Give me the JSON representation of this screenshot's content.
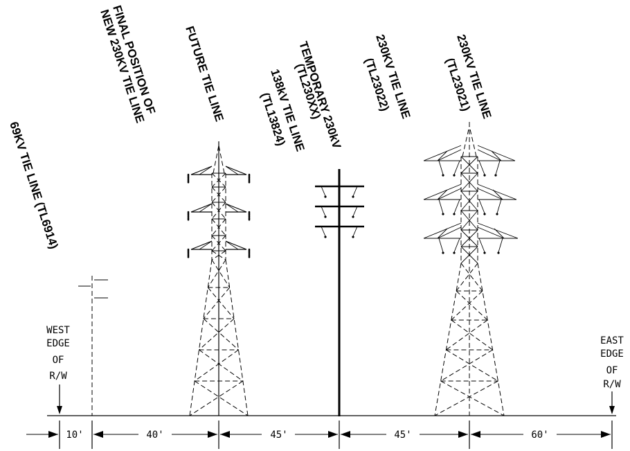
{
  "labels": {
    "tl69": "69KV TIE LINE (TL6914)",
    "final_1": "FINAL POSITION OF",
    "final_2": "NEW 230KV TIE LINE",
    "future": "FUTURE TIE LINE",
    "tl138_1": "138kV TIE LINE",
    "tl138_2": "(TL13824)",
    "temp_1": "TEMPORARY 230kV",
    "temp_2": "(TL230XX)",
    "tl22_1": "230KV TIE LINE",
    "tl22_2": "(TL23022)",
    "tl21_1": "230KV TIE LINE",
    "tl21_2": "(TL23021)"
  },
  "west_edge": [
    "WEST",
    "EDGE",
    "OF",
    "R/W"
  ],
  "east_edge": [
    "EAST",
    "EDGE",
    "OF",
    "R/W"
  ],
  "dimensions": [
    "10'",
    "40'",
    "45'",
    "45'",
    "60'"
  ]
}
